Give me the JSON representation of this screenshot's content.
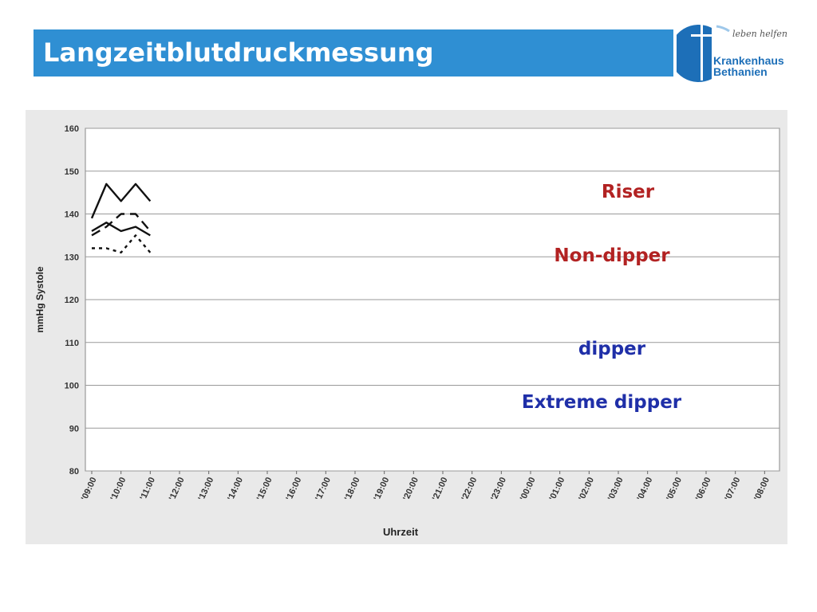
{
  "header": {
    "title": "Langzeitblutdruckmessung"
  },
  "logo": {
    "tagline": "leben helfen",
    "name_line1": "Krankenhaus",
    "name_line2": "Bethanien",
    "color": "#1d6fb8"
  },
  "colors": {
    "title_bar": "#2f8fd3",
    "red_label": "#b22222",
    "blue_label": "#1f2fa8"
  },
  "chart_data": {
    "type": "line",
    "ylabel": "mmHg Systole",
    "xlabel": "Uhrzeit",
    "ylim": [
      80,
      160
    ],
    "yticks": [
      80,
      90,
      100,
      110,
      120,
      130,
      140,
      150,
      160
    ],
    "grid": true,
    "x_ticks": [
      "09:00",
      "10:00",
      "11:00",
      "12:00",
      "13:00",
      "14:00",
      "15:00",
      "16:00",
      "17:00",
      "18:00",
      "19:00",
      "20:00",
      "21:00",
      "22:00",
      "23:00",
      "00:00",
      "01:00",
      "02:00",
      "03:00",
      "04:00",
      "05:00",
      "06:00",
      "07:00",
      "08:00"
    ],
    "x_time": [
      0,
      0.5,
      1,
      1.5,
      2
    ],
    "series": [
      {
        "name": "Riser",
        "label_color": "#b22222",
        "style": "dotted",
        "values": [
          132,
          132,
          131,
          135,
          131
        ]
      },
      {
        "name": "Non-dipper",
        "label_color": "#b22222",
        "style": "solid",
        "values": [
          136,
          138,
          136,
          137,
          135
        ]
      },
      {
        "name": "dipper",
        "label_color": "#1f2fa8",
        "style": "dashed",
        "values": [
          135,
          137,
          140,
          140,
          136
        ]
      },
      {
        "name": "Extreme dipper",
        "label_color": "#1f2fa8",
        "style": "solid",
        "values": [
          139,
          147,
          143,
          147,
          143
        ]
      }
    ]
  }
}
